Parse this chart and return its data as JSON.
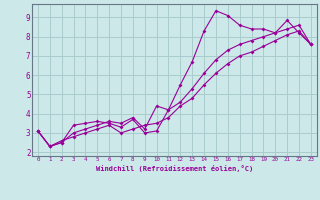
{
  "xlabel": "Windchill (Refroidissement éolien,°C)",
  "bg_color": "#cce8e8",
  "line_color": "#990099",
  "grid_color": "#aacccc",
  "spine_color": "#667788",
  "xlim": [
    -0.5,
    23.5
  ],
  "ylim": [
    1.8,
    9.7
  ],
  "yticks": [
    2,
    3,
    4,
    5,
    6,
    7,
    8,
    9
  ],
  "xticks": [
    0,
    1,
    2,
    3,
    4,
    5,
    6,
    7,
    8,
    9,
    10,
    11,
    12,
    13,
    14,
    15,
    16,
    17,
    18,
    19,
    20,
    21,
    22,
    23
  ],
  "line1_x": [
    0,
    1,
    2,
    3,
    4,
    5,
    6,
    7,
    8,
    9,
    10,
    11,
    12,
    13,
    14,
    15,
    16,
    17,
    18,
    19,
    20,
    21,
    22,
    23
  ],
  "line1_y": [
    3.1,
    2.3,
    2.5,
    3.4,
    3.5,
    3.6,
    3.5,
    3.3,
    3.7,
    3.0,
    3.1,
    4.2,
    5.5,
    6.7,
    8.3,
    9.35,
    9.1,
    8.6,
    8.4,
    8.4,
    8.2,
    8.85,
    8.2,
    7.6
  ],
  "line2_x": [
    0,
    1,
    2,
    3,
    4,
    5,
    6,
    7,
    8,
    9,
    10,
    11,
    12,
    13,
    14,
    15,
    16,
    17,
    18,
    19,
    20,
    21,
    22,
    23
  ],
  "line2_y": [
    3.1,
    2.3,
    2.5,
    3.0,
    3.2,
    3.4,
    3.6,
    3.5,
    3.8,
    3.2,
    4.4,
    4.2,
    4.6,
    5.3,
    6.1,
    6.8,
    7.3,
    7.6,
    7.8,
    8.0,
    8.2,
    8.4,
    8.6,
    7.6
  ],
  "line3_x": [
    0,
    1,
    2,
    3,
    4,
    5,
    6,
    7,
    8,
    9,
    10,
    11,
    12,
    13,
    14,
    15,
    16,
    17,
    18,
    19,
    20,
    21,
    22,
    23
  ],
  "line3_y": [
    3.1,
    2.3,
    2.6,
    2.8,
    3.0,
    3.2,
    3.4,
    3.0,
    3.2,
    3.4,
    3.5,
    3.8,
    4.4,
    4.8,
    5.5,
    6.1,
    6.6,
    7.0,
    7.2,
    7.5,
    7.8,
    8.1,
    8.3,
    7.6
  ],
  "xlabel_fontsize": 5.0,
  "tick_fontsize_x": 4.2,
  "tick_fontsize_y": 5.5
}
